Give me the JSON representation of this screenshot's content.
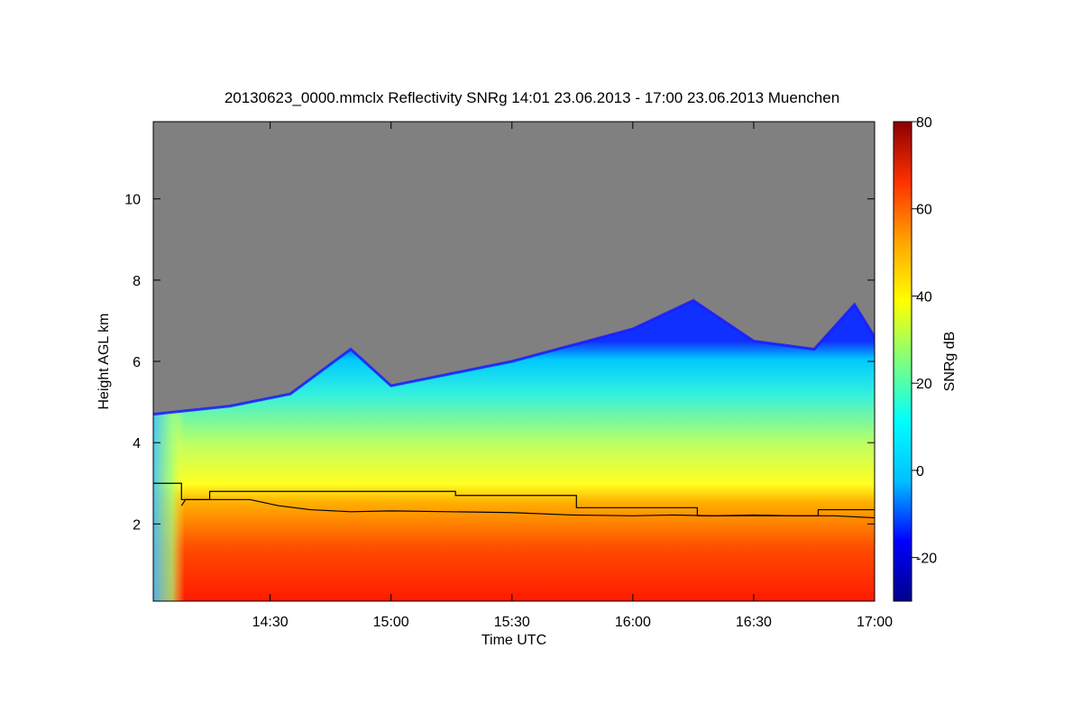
{
  "chart_data": {
    "type": "heatmap",
    "title": "20130623_0000.mmclx Reflectivity SNRg   14:01 23.06.2013 - 17:00 23.06.2013 Muenchen",
    "xlabel": "Time UTC",
    "ylabel": "Height AGL km",
    "x_range": [
      "14:01",
      "17:00"
    ],
    "x_ticks": [
      "14:30",
      "15:00",
      "15:30",
      "16:00",
      "16:30",
      "17:00"
    ],
    "ylim": [
      0.1,
      11.9
    ],
    "y_ticks": [
      2,
      4,
      6,
      8,
      10
    ],
    "colorbar": {
      "label": "SNRg dB",
      "range": [
        -30,
        80
      ],
      "ticks": [
        -20,
        0,
        20,
        40,
        60,
        80
      ],
      "colormap": [
        "#00008b",
        "#0000ff",
        "#00bfff",
        "#00ffff",
        "#7fff7f",
        "#ffff00",
        "#ffa500",
        "#ff3000",
        "#8b0000"
      ]
    },
    "no_data_color": "#808080",
    "cloud_top_km": [
      {
        "time": "14:01",
        "height": 4.7
      },
      {
        "time": "14:20",
        "height": 4.9
      },
      {
        "time": "14:35",
        "height": 5.2
      },
      {
        "time": "14:50",
        "height": 6.3
      },
      {
        "time": "15:00",
        "height": 5.4
      },
      {
        "time": "15:15",
        "height": 5.7
      },
      {
        "time": "15:30",
        "height": 6.0
      },
      {
        "time": "15:45",
        "height": 6.4
      },
      {
        "time": "16:00",
        "height": 6.8
      },
      {
        "time": "16:15",
        "height": 7.5
      },
      {
        "time": "16:30",
        "height": 6.5
      },
      {
        "time": "16:45",
        "height": 6.3
      },
      {
        "time": "16:55",
        "height": 7.4
      },
      {
        "time": "17:00",
        "height": 6.6
      }
    ],
    "series": [
      {
        "x": [
          "14:01",
          "14:08",
          "14:08",
          "14:15",
          "14:15",
          "15:16",
          "15:16",
          "15:46",
          "15:46",
          "16:16",
          "16:16",
          "16:46",
          "16:46",
          "17:00"
        ],
        "values": [
          3.0,
          3.0,
          2.6,
          2.6,
          2.8,
          2.8,
          2.7,
          2.7,
          2.4,
          2.4,
          2.2,
          2.2,
          2.35,
          2.35
        ]
      },
      {
        "x": [
          "14:08",
          "14:09",
          "14:25",
          "14:32",
          "14:40",
          "14:50",
          "15:00",
          "15:15",
          "15:30",
          "15:45",
          "16:00",
          "16:10",
          "16:20",
          "16:30",
          "16:40",
          "16:50",
          "17:00"
        ],
        "values": [
          2.45,
          2.6,
          2.6,
          2.45,
          2.35,
          2.3,
          2.32,
          2.3,
          2.28,
          2.22,
          2.2,
          2.22,
          2.2,
          2.22,
          2.2,
          2.2,
          2.15
        ]
      }
    ]
  }
}
